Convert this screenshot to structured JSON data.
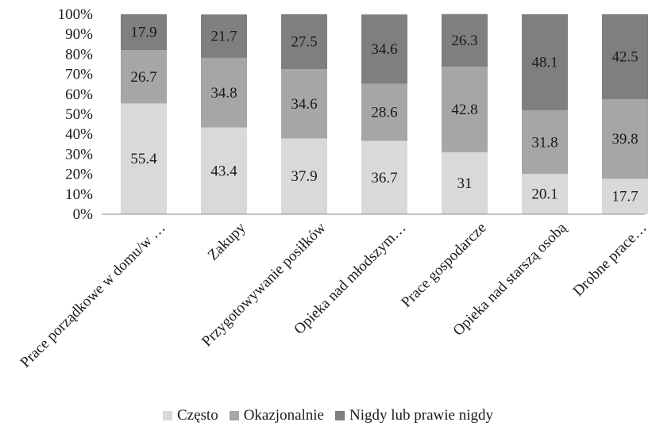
{
  "chart_data": {
    "type": "bar",
    "stacked": true,
    "percent_stacked": true,
    "categories": [
      "Prace porządkowe w domu/w …",
      "Zakupy",
      "Przygotowywanie posiłków",
      "Opieka nad młodszym…",
      "Prace gospodarcze",
      "Opieka nad starszą osobą",
      "Drobne prace…"
    ],
    "series": [
      {
        "name": "Często",
        "color": "#d9d9d9",
        "values": [
          55.4,
          43.4,
          37.9,
          36.7,
          31,
          20.1,
          17.7
        ],
        "labels": [
          "55.4",
          "43.4",
          "37.9",
          "36.7",
          "31",
          "20.1",
          "17.7"
        ]
      },
      {
        "name": "Okazjonalnie",
        "color": "#a6a6a6",
        "values": [
          26.7,
          34.8,
          34.6,
          28.6,
          42.8,
          31.8,
          39.8
        ],
        "labels": [
          "26.7",
          "34.8",
          "34.6",
          "28.6",
          "42.8",
          "31.8",
          "39.8"
        ]
      },
      {
        "name": "Nigdy lub prawie nigdy",
        "color": "#7f7f7f",
        "values": [
          17.9,
          21.7,
          27.5,
          34.6,
          26.3,
          48.1,
          42.5
        ],
        "labels": [
          "17.9",
          "21.7",
          "27.5",
          "34.6",
          "26.3",
          "48.1",
          "42.5"
        ]
      }
    ],
    "yticks": [
      "0%",
      "10%",
      "20%",
      "30%",
      "40%",
      "50%",
      "60%",
      "70%",
      "80%",
      "90%",
      "100%"
    ],
    "ylim": [
      0,
      100
    ],
    "grid": false,
    "legend_position": "bottom"
  }
}
